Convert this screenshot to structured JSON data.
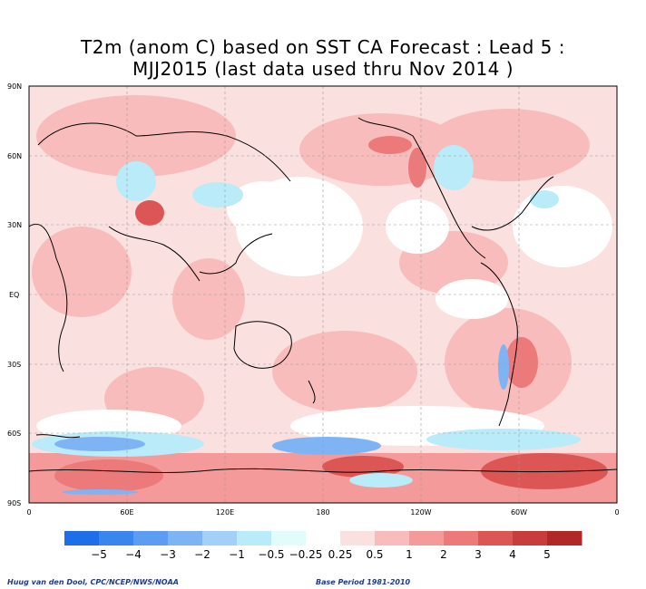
{
  "title_line1": "T2m (anom C) based on SST CA Forecast : Lead 5 :",
  "title_line2": "MJJ2015 (last data used thru Nov 2014 )",
  "lat_labels": [
    "90N",
    "60N",
    "30N",
    "EQ",
    "30S",
    "60S",
    "90S"
  ],
  "lon_labels": [
    "0",
    "60E",
    "120E",
    "180",
    "120W",
    "60W",
    "0"
  ],
  "colorbar": {
    "labels": [
      "−5",
      "−4",
      "−3",
      "−2",
      "−1",
      "−0.5",
      "−0.25",
      "0.25",
      "0.5",
      "1",
      "2",
      "3",
      "4",
      "5"
    ],
    "colors": [
      "#1e6ee8",
      "#3a86ee",
      "#5c9cf2",
      "#7fb4f4",
      "#a4d0f8",
      "#b9ecf8",
      "#e2fcfc",
      "#ffffff",
      "#fbe0e0",
      "#f8bcbc",
      "#f49a9a",
      "#ec7a7a",
      "#dc5656",
      "#c83c3c",
      "#b02828"
    ]
  },
  "credit": "Huug van den Dool, CPC/NCEP/NWS/NOAA",
  "base_period": "Base Period 1981-2010"
}
